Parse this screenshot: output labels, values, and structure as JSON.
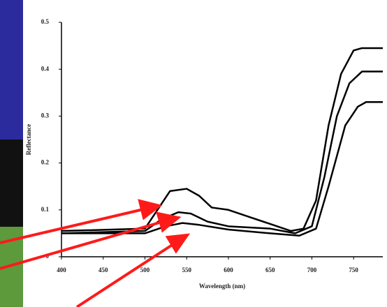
{
  "chart_data": {
    "type": "line",
    "y_label": "Reflectance",
    "x_label": "Wavelength (nm)",
    "xlim": [
      400,
      785
    ],
    "xticks": [
      400,
      450,
      500,
      550,
      600,
      650,
      700,
      750
    ],
    "ylim": [
      0,
      0.5
    ],
    "yticks": [
      0,
      0.1,
      0.2,
      0.3,
      0.4,
      0.5
    ],
    "series": [
      {
        "color": "#000000",
        "x": [
          400,
          500,
          515,
          530,
          550,
          565,
          580,
          600,
          625,
          650,
          675,
          690,
          705,
          720,
          735,
          750,
          760,
          785
        ],
        "values": [
          0.055,
          0.06,
          0.1,
          0.14,
          0.145,
          0.13,
          0.105,
          0.1,
          0.085,
          0.07,
          0.055,
          0.06,
          0.12,
          0.28,
          0.39,
          0.44,
          0.445,
          0.445
        ]
      },
      {
        "color": "#000000",
        "x": [
          400,
          500,
          520,
          540,
          555,
          575,
          600,
          650,
          680,
          700,
          715,
          730,
          745,
          760,
          785
        ],
        "values": [
          0.05,
          0.055,
          0.08,
          0.095,
          0.092,
          0.075,
          0.065,
          0.06,
          0.05,
          0.065,
          0.17,
          0.3,
          0.37,
          0.395,
          0.395
        ]
      },
      {
        "color": "#000000",
        "x": [
          400,
          500,
          525,
          545,
          565,
          600,
          650,
          685,
          705,
          720,
          740,
          755,
          765,
          785
        ],
        "values": [
          0.05,
          0.05,
          0.065,
          0.072,
          0.068,
          0.058,
          0.05,
          0.045,
          0.06,
          0.15,
          0.28,
          0.32,
          0.33,
          0.33
        ]
      }
    ]
  }
}
